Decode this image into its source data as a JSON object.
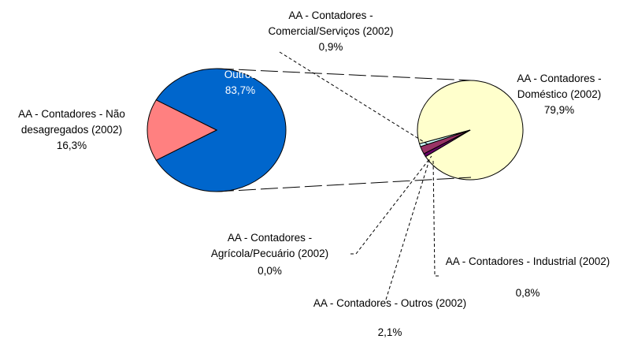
{
  "chart_data": {
    "type": "pie-of-pie",
    "pies": [
      {
        "categories": [
          "Outros",
          "AA - Contadores - Não desagregados (2002)"
        ],
        "values": [
          83.7,
          16.3
        ],
        "value_labels": [
          "83,7%",
          "16,3%"
        ],
        "colors": [
          "#0066cc",
          "#ff8080"
        ]
      },
      {
        "categories": [
          "AA - Contadores - Doméstico (2002)",
          "AA - Contadores - Comercial/Serviços (2002)",
          "AA - Contadores - Agrícola/Pecuário (2002)",
          "AA - Contadores - Outros (2002)",
          "AA - Contadores - Industrial (2002)"
        ],
        "values": [
          79.9,
          0.9,
          0.0,
          2.1,
          0.8
        ],
        "value_labels": [
          "79,9%",
          "0,9%",
          "0,0%",
          "2,1%",
          "0,8%"
        ],
        "colors": [
          "#ffffcc",
          "#660066",
          "#9999ff",
          "#993366",
          "#ccffff"
        ]
      }
    ]
  }
}
